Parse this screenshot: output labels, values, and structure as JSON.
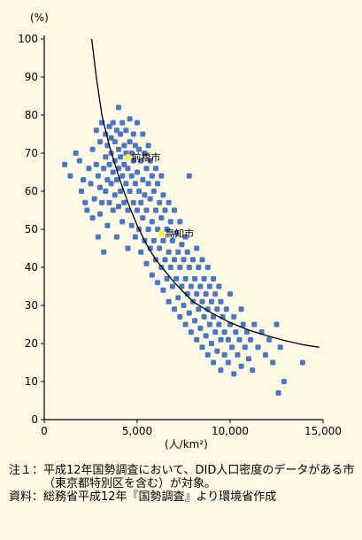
{
  "chart_data": {
    "type": "scatter",
    "y_unit": "(%)",
    "x_unit": "(人/km²)",
    "xlim": [
      0,
      15000
    ],
    "ylim": [
      0,
      100
    ],
    "x_ticks": [
      0,
      5000,
      10000,
      15000
    ],
    "x_tick_labels": [
      "0",
      "5,000",
      "10,000",
      "15,000"
    ],
    "y_ticks": [
      0,
      10,
      20,
      30,
      40,
      50,
      60,
      70,
      80,
      90,
      100
    ],
    "y_tick_labels": [
      "0",
      "10",
      "20",
      "30",
      "40",
      "50",
      "60",
      "70",
      "80",
      "90",
      "100"
    ],
    "point_color": "#4a76c3",
    "highlight_color": "#ffee33",
    "curve_color": "#000000",
    "background": "#fff9e6",
    "annotations": [
      {
        "label": "前橋市",
        "x": 4500,
        "y": 69
      },
      {
        "label": "高知市",
        "x": 6300,
        "y": 49
      }
    ],
    "trend_curve": [
      [
        2550,
        100
      ],
      [
        2800,
        90
      ],
      [
        3100,
        80
      ],
      [
        3500,
        72
      ],
      [
        4000,
        64
      ],
      [
        4500,
        57
      ],
      [
        5000,
        51
      ],
      [
        5500,
        46
      ],
      [
        6000,
        42
      ],
      [
        7000,
        36
      ],
      [
        8000,
        31
      ],
      [
        9000,
        28
      ],
      [
        10000,
        25.5
      ],
      [
        11000,
        23.5
      ],
      [
        12000,
        22
      ],
      [
        13000,
        20.7
      ],
      [
        14000,
        19.6
      ],
      [
        14800,
        19
      ]
    ],
    "points": [
      [
        1100,
        67
      ],
      [
        1400,
        64
      ],
      [
        1700,
        70
      ],
      [
        1900,
        68
      ],
      [
        2000,
        60
      ],
      [
        2100,
        63
      ],
      [
        2200,
        57
      ],
      [
        2300,
        55
      ],
      [
        2400,
        66
      ],
      [
        2500,
        62
      ],
      [
        2600,
        53
      ],
      [
        2600,
        71
      ],
      [
        2700,
        58
      ],
      [
        2800,
        67
      ],
      [
        2800,
        76
      ],
      [
        2900,
        48
      ],
      [
        2900,
        64
      ],
      [
        3000,
        54
      ],
      [
        3000,
        61
      ],
      [
        3000,
        73
      ],
      [
        3100,
        57
      ],
      [
        3100,
        78
      ],
      [
        3200,
        44
      ],
      [
        3200,
        66
      ],
      [
        3300,
        69
      ],
      [
        3300,
        60
      ],
      [
        3300,
        75
      ],
      [
        3400,
        51
      ],
      [
        3400,
        63
      ],
      [
        3400,
        72
      ],
      [
        3500,
        57
      ],
      [
        3500,
        67
      ],
      [
        3500,
        77
      ],
      [
        3600,
        62
      ],
      [
        3600,
        70
      ],
      [
        3600,
        74
      ],
      [
        3700,
        55
      ],
      [
        3700,
        65
      ],
      [
        3700,
        78
      ],
      [
        3800,
        59
      ],
      [
        3800,
        68
      ],
      [
        3800,
        73
      ],
      [
        3900,
        48
      ],
      [
        3900,
        63
      ],
      [
        3900,
        76
      ],
      [
        4000,
        56
      ],
      [
        4000,
        66
      ],
      [
        4000,
        71
      ],
      [
        4000,
        82
      ],
      [
        4100,
        60
      ],
      [
        4100,
        69
      ],
      [
        4100,
        75
      ],
      [
        4200,
        52
      ],
      [
        4200,
        64
      ],
      [
        4200,
        78
      ],
      [
        4300,
        57
      ],
      [
        4300,
        67
      ],
      [
        4300,
        72
      ],
      [
        4400,
        62
      ],
      [
        4400,
        70
      ],
      [
        4400,
        76
      ],
      [
        4500,
        45
      ],
      [
        4500,
        55
      ],
      [
        4500,
        66
      ],
      [
        4600,
        60
      ],
      [
        4600,
        73
      ],
      [
        4600,
        79
      ],
      [
        4700,
        51
      ],
      [
        4700,
        64
      ],
      [
        4700,
        70
      ],
      [
        4800,
        57
      ],
      [
        4800,
        68
      ],
      [
        4800,
        75
      ],
      [
        4900,
        48
      ],
      [
        4900,
        62
      ],
      [
        4900,
        72
      ],
      [
        5000,
        55
      ],
      [
        5000,
        65
      ],
      [
        5000,
        78
      ],
      [
        5100,
        50
      ],
      [
        5100,
        60
      ],
      [
        5100,
        71
      ],
      [
        5200,
        44
      ],
      [
        5200,
        57
      ],
      [
        5200,
        68
      ],
      [
        5300,
        53
      ],
      [
        5300,
        63
      ],
      [
        5300,
        75
      ],
      [
        5400,
        47
      ],
      [
        5400,
        59
      ],
      [
        5400,
        70
      ],
      [
        5500,
        41
      ],
      [
        5500,
        55
      ],
      [
        5500,
        66
      ],
      [
        5600,
        50
      ],
      [
        5600,
        62
      ],
      [
        5600,
        72
      ],
      [
        5700,
        45
      ],
      [
        5700,
        58
      ],
      [
        5700,
        68
      ],
      [
        5800,
        38
      ],
      [
        5800,
        52
      ],
      [
        5800,
        64
      ],
      [
        5900,
        47
      ],
      [
        5900,
        60
      ],
      [
        6000,
        42
      ],
      [
        6000,
        55
      ],
      [
        6000,
        66
      ],
      [
        6100,
        36
      ],
      [
        6100,
        50
      ],
      [
        6100,
        62
      ],
      [
        6200,
        45
      ],
      [
        6200,
        57
      ],
      [
        6300,
        40
      ],
      [
        6300,
        53
      ],
      [
        6300,
        64
      ],
      [
        6400,
        34
      ],
      [
        6400,
        47
      ],
      [
        6400,
        59
      ],
      [
        6500,
        42
      ],
      [
        6500,
        55
      ],
      [
        6600,
        37
      ],
      [
        6600,
        50
      ],
      [
        6700,
        31
      ],
      [
        6700,
        44
      ],
      [
        6700,
        57
      ],
      [
        6800,
        40
      ],
      [
        6800,
        52
      ],
      [
        6900,
        35
      ],
      [
        6900,
        47
      ],
      [
        7000,
        29
      ],
      [
        7000,
        42
      ],
      [
        7000,
        55
      ],
      [
        7100,
        37
      ],
      [
        7100,
        49
      ],
      [
        7200,
        32
      ],
      [
        7200,
        44
      ],
      [
        7300,
        27
      ],
      [
        7300,
        40
      ],
      [
        7300,
        52
      ],
      [
        7400,
        35
      ],
      [
        7400,
        46
      ],
      [
        7500,
        30
      ],
      [
        7500,
        42
      ],
      [
        7600,
        25
      ],
      [
        7600,
        37
      ],
      [
        7600,
        48
      ],
      [
        7700,
        33
      ],
      [
        7700,
        44
      ],
      [
        7800,
        28
      ],
      [
        7800,
        40
      ],
      [
        7800,
        64
      ],
      [
        7900,
        23
      ],
      [
        7900,
        35
      ],
      [
        8000,
        31
      ],
      [
        8000,
        42
      ],
      [
        8100,
        26
      ],
      [
        8100,
        37
      ],
      [
        8200,
        21
      ],
      [
        8200,
        33
      ],
      [
        8200,
        45
      ],
      [
        8300,
        29
      ],
      [
        8300,
        40
      ],
      [
        8400,
        24
      ],
      [
        8400,
        35
      ],
      [
        8500,
        19
      ],
      [
        8500,
        31
      ],
      [
        8500,
        42
      ],
      [
        8600,
        27
      ],
      [
        8600,
        37
      ],
      [
        8700,
        22
      ],
      [
        8700,
        33
      ],
      [
        8800,
        17
      ],
      [
        8800,
        29
      ],
      [
        8800,
        40
      ],
      [
        8900,
        25
      ],
      [
        8900,
        35
      ],
      [
        9000,
        20
      ],
      [
        9000,
        31
      ],
      [
        9100,
        15
      ],
      [
        9100,
        27
      ],
      [
        9100,
        37
      ],
      [
        9200,
        23
      ],
      [
        9200,
        33
      ],
      [
        9300,
        18
      ],
      [
        9300,
        29
      ],
      [
        9400,
        25
      ],
      [
        9400,
        35
      ],
      [
        9500,
        13
      ],
      [
        9500,
        21
      ],
      [
        9500,
        31
      ],
      [
        9600,
        27
      ],
      [
        9700,
        17
      ],
      [
        9700,
        23
      ],
      [
        9800,
        29
      ],
      [
        9900,
        15
      ],
      [
        9900,
        21
      ],
      [
        10000,
        25
      ],
      [
        10000,
        33
      ],
      [
        10100,
        19
      ],
      [
        10200,
        12
      ],
      [
        10200,
        27
      ],
      [
        10300,
        23
      ],
      [
        10400,
        17
      ],
      [
        10500,
        21
      ],
      [
        10600,
        14
      ],
      [
        10600,
        29
      ],
      [
        10700,
        25
      ],
      [
        10800,
        19
      ],
      [
        10900,
        23
      ],
      [
        11000,
        16
      ],
      [
        11100,
        21
      ],
      [
        11200,
        13
      ],
      [
        11300,
        25
      ],
      [
        11500,
        19
      ],
      [
        11700,
        23
      ],
      [
        11900,
        17
      ],
      [
        12100,
        21
      ],
      [
        12300,
        15
      ],
      [
        12500,
        25
      ],
      [
        12600,
        7
      ],
      [
        12700,
        19
      ],
      [
        12900,
        10
      ],
      [
        13900,
        15
      ]
    ]
  },
  "notes": [
    {
      "label": "注１：",
      "text": "平成12年国勢調査において、DID人口密度のデータがある市（東京都特別区を含む）が対象。"
    },
    {
      "label": "資料：",
      "text": "総務省平成12年『国勢調査』より環境省作成"
    }
  ]
}
